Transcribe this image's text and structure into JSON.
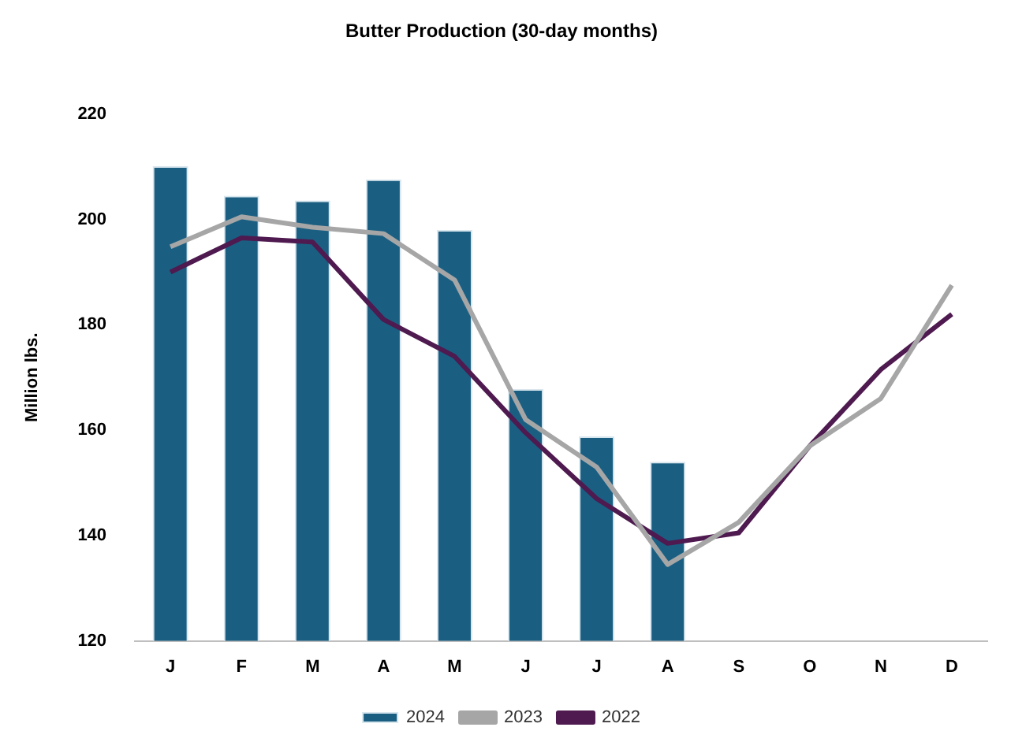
{
  "chart_data": {
    "type": "bar",
    "title": "Butter Production (30-day months)",
    "ylabel": "Million lbs.",
    "categories": [
      "J",
      "F",
      "M",
      "A",
      "M",
      "J",
      "J",
      "A",
      "S",
      "O",
      "N",
      "D"
    ],
    "series": [
      {
        "name": "2024",
        "color": "#1a5f82",
        "values": [
          210.1,
          204.5,
          203.6,
          207.6,
          198.0,
          167.8,
          158.8,
          154.0,
          null,
          null,
          null,
          null
        ]
      },
      {
        "name": "2023",
        "type": "line",
        "color": "#a6a6a6",
        "values": [
          194.8,
          200.5,
          198.5,
          197.3,
          188.5,
          162,
          153,
          134.5,
          142.5,
          157,
          166,
          187.5
        ]
      },
      {
        "name": "2022",
        "type": "line",
        "color": "#4e1a4f",
        "values": [
          190,
          196.5,
          195.7,
          181,
          174,
          159.5,
          147,
          138.5,
          140.5,
          157,
          171.5,
          182
        ]
      }
    ],
    "ylim": [
      120,
      220
    ],
    "yticks": [
      120,
      140,
      160,
      180,
      200,
      220
    ],
    "grid": false,
    "legend": "bottom",
    "marker": "none"
  }
}
